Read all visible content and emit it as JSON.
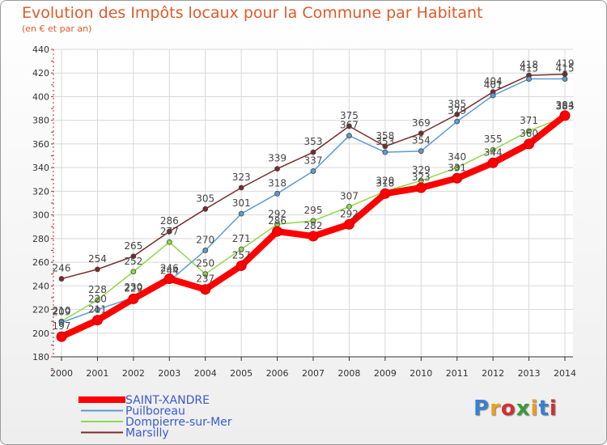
{
  "title": "Evolution des Impôts locaux pour la Commune par Habitant",
  "subtitle": "(en € et par an)",
  "logo": {
    "text": "Proxiti",
    "colors": [
      "#3a7fd0",
      "#e8a020",
      "#d03030",
      "#3a9a3a",
      "#e8a020",
      "#3a7fd0",
      "#d03030"
    ]
  },
  "chart_data": {
    "type": "line",
    "title": "Evolution des Impôts locaux pour la Commune par Habitant",
    "subtitle": "(en € et par an)",
    "xlabel": "",
    "ylabel": "",
    "ylim": [
      180,
      440
    ],
    "yticks": [
      180,
      200,
      220,
      240,
      260,
      280,
      300,
      320,
      340,
      360,
      380,
      400,
      420,
      440
    ],
    "categories": [
      "2000",
      "2001",
      "2002",
      "2003",
      "2004",
      "2005",
      "2006",
      "2007",
      "2008",
      "2009",
      "2010",
      "2011",
      "2012",
      "2013",
      "2014"
    ],
    "grid": true,
    "legend_position": "bottom-left",
    "series": [
      {
        "name": "SAINT-XANDRE",
        "color": "#ff0000",
        "values": [
          197,
          211,
          229,
          246,
          237,
          257,
          286,
          282,
          292,
          318,
          323,
          331,
          344,
          360,
          384
        ]
      },
      {
        "name": "Puilboreau",
        "color": "#5b9bd5",
        "values": [
          209,
          220,
          230,
          244,
          270,
          301,
          318,
          337,
          367,
          353,
          354,
          379,
          401,
          415,
          415
        ]
      },
      {
        "name": "Dompierre-sur-Mer",
        "color": "#8fd84a",
        "values": [
          210,
          228,
          252,
          277,
          250,
          271,
          292,
          295,
          307,
          320,
          329,
          340,
          355,
          371,
          383
        ]
      },
      {
        "name": "Marsilly",
        "color": "#7a2a2a",
        "values": [
          246,
          254,
          265,
          286,
          305,
          323,
          339,
          353,
          375,
          358,
          369,
          385,
          404,
          418,
          419
        ]
      }
    ]
  }
}
